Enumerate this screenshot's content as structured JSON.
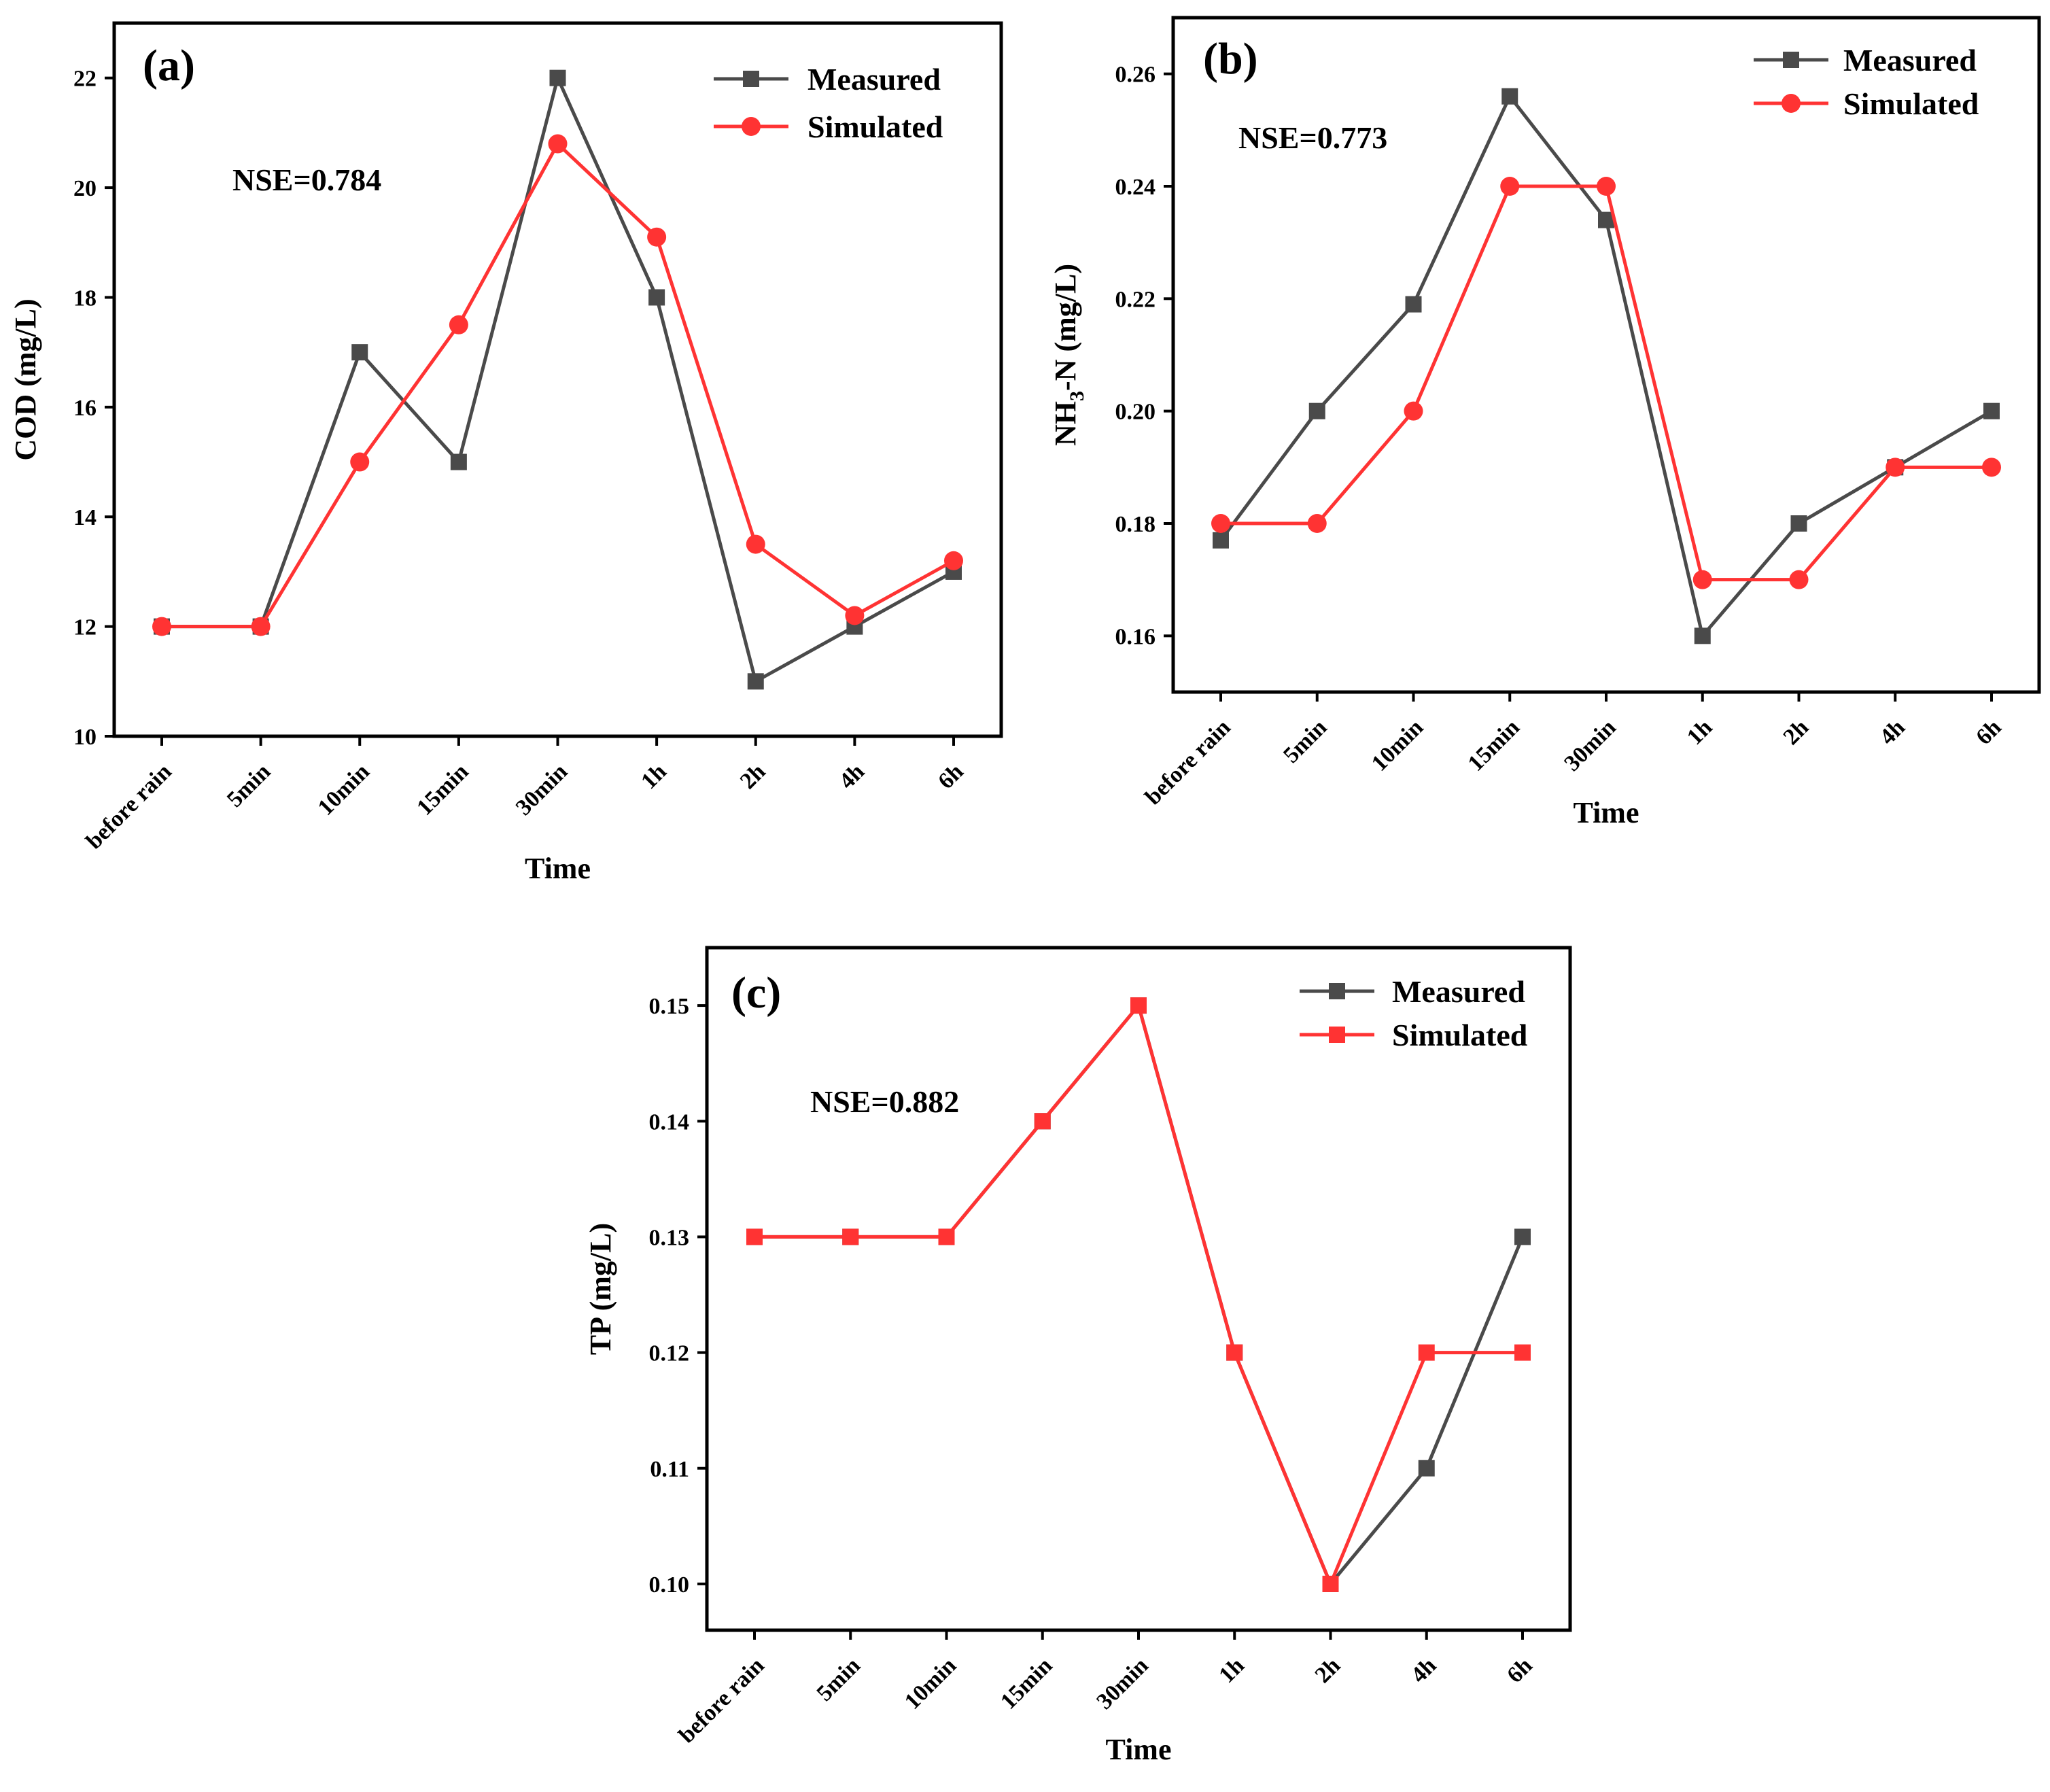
{
  "colors": {
    "measured": "#4a4a4a",
    "simulated": "#ff3333",
    "axis": "#000000"
  },
  "chart_data": [
    {
      "type": "line",
      "panel": "(a)",
      "annotation": "NSE=0.784",
      "xlabel": "Time",
      "ylabel": "COD (mg/L)",
      "categories": [
        "before rain",
        "5min",
        "10min",
        "15min",
        "30min",
        "1h",
        "2h",
        "4h",
        "6h"
      ],
      "ylim": [
        10,
        23
      ],
      "yticks": [
        10,
        12,
        14,
        16,
        18,
        20,
        22
      ],
      "ytick_labels": [
        "10",
        "12",
        "14",
        "16",
        "18",
        "20",
        "22"
      ],
      "legend_position": "top-right",
      "series": [
        {
          "name": "Measured",
          "marker": "square",
          "values": [
            12,
            12,
            17,
            15,
            22,
            18,
            11,
            12,
            13
          ]
        },
        {
          "name": "Simulated",
          "marker": "circle",
          "values": [
            12,
            12,
            15,
            17.5,
            20.8,
            19.1,
            13.5,
            12.2,
            13.2
          ]
        }
      ]
    },
    {
      "type": "line",
      "panel": "(b)",
      "annotation": "NSE=0.773",
      "xlabel": "Time",
      "ylabel": "NH3-N (mg/L)",
      "ylabel_main": "NH",
      "ylabel_sub": "3",
      "ylabel_rest": "-N (mg/L)",
      "categories": [
        "before rain",
        "5min",
        "10min",
        "15min",
        "30min",
        "1h",
        "2h",
        "4h",
        "6h"
      ],
      "ylim": [
        0.15,
        0.27
      ],
      "yticks": [
        0.16,
        0.18,
        0.2,
        0.22,
        0.24,
        0.26
      ],
      "ytick_labels": [
        "0.16",
        "0.18",
        "0.20",
        "0.22",
        "0.24",
        "0.26"
      ],
      "legend_position": "top-right",
      "series": [
        {
          "name": "Measured",
          "marker": "square",
          "values": [
            0.177,
            0.2,
            0.219,
            0.256,
            0.234,
            0.16,
            0.18,
            0.19,
            0.2
          ]
        },
        {
          "name": "Simulated",
          "marker": "circle",
          "values": [
            0.18,
            0.18,
            0.2,
            0.24,
            0.24,
            0.17,
            0.17,
            0.19,
            0.19
          ]
        }
      ]
    },
    {
      "type": "line",
      "panel": "(c)",
      "annotation": "NSE=0.882",
      "xlabel": "Time",
      "ylabel": "TP (mg/L)",
      "categories": [
        "before rain",
        "5min",
        "10min",
        "15min",
        "30min",
        "1h",
        "2h",
        "4h",
        "6h"
      ],
      "ylim": [
        0.096,
        0.155
      ],
      "yticks": [
        0.1,
        0.11,
        0.12,
        0.13,
        0.14,
        0.15
      ],
      "ytick_labels": [
        "0.10",
        "0.11",
        "0.12",
        "0.13",
        "0.14",
        "0.15"
      ],
      "legend_position": "top-right",
      "series": [
        {
          "name": "Measured",
          "marker": "square",
          "values": [
            0.13,
            0.13,
            0.13,
            0.14,
            0.15,
            0.12,
            0.1,
            0.11,
            0.13
          ]
        },
        {
          "name": "Simulated",
          "marker": "square",
          "values": [
            0.13,
            0.13,
            0.13,
            0.14,
            0.15,
            0.12,
            0.1,
            0.12,
            0.12
          ]
        }
      ]
    }
  ]
}
